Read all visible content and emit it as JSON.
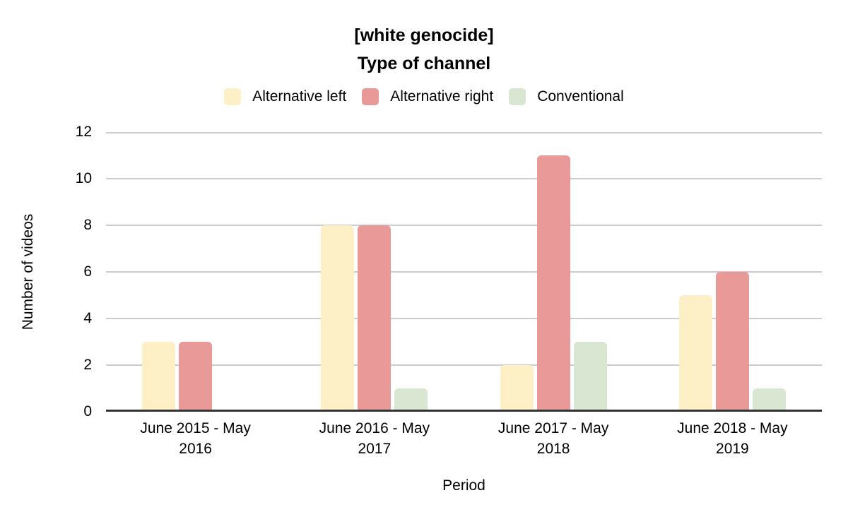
{
  "chart_data": {
    "type": "bar",
    "title": "[white genocide]",
    "subtitle": "Type of channel",
    "categories": [
      "June 2015 - May 2016",
      "June 2016 - May 2017",
      "June 2017 - May 2018",
      "June 2018 - May 2019"
    ],
    "series": [
      {
        "name": "Alternative left",
        "color": "#FDF0C7",
        "values": [
          3,
          8,
          2,
          5
        ]
      },
      {
        "name": "Alternative right",
        "color": "#EA9999",
        "values": [
          3,
          8,
          11,
          6
        ]
      },
      {
        "name": "Conventional",
        "color": "#D9E7D2",
        "values": [
          0,
          1,
          3,
          1
        ]
      }
    ],
    "xlabel": "Period",
    "ylabel": "Number of videos",
    "ylim": [
      0,
      12
    ],
    "yticks": [
      0,
      2,
      4,
      6,
      8,
      10,
      12
    ],
    "grid": true,
    "legend_position": "top"
  },
  "colors": {
    "gridline": "#cccccc",
    "axis_line": "#333333",
    "text": "#000000",
    "background": "#ffffff"
  }
}
